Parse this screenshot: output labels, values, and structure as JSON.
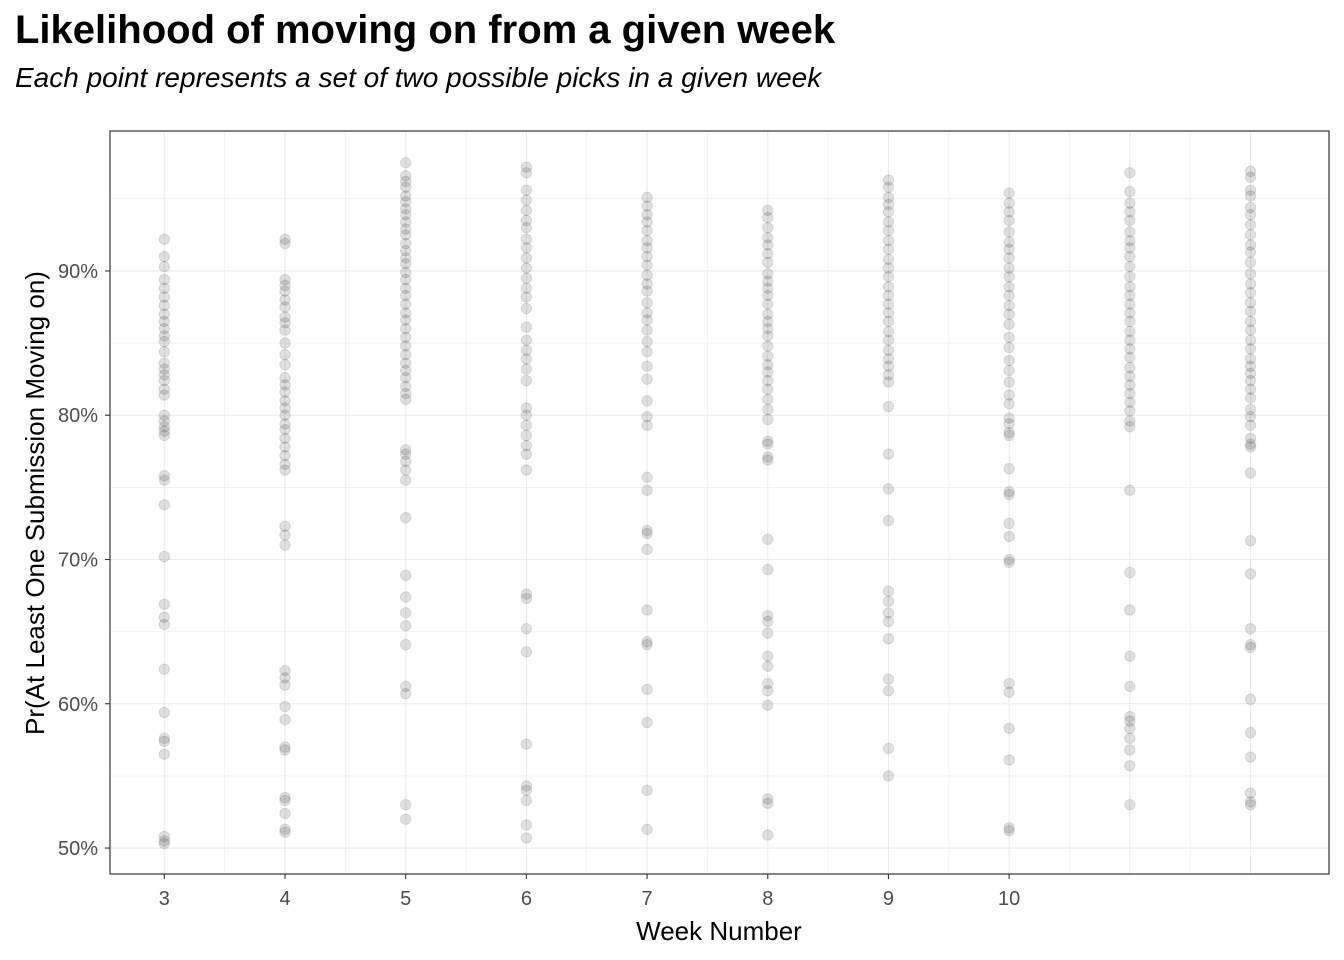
{
  "chart_data": {
    "type": "scatter",
    "title": "Likelihood of moving on from a given week",
    "subtitle": "Each point represents a set of two possible picks in a given week",
    "xlabel": "Week Number",
    "ylabel": "Pr(At Least One Submission Moving on)",
    "x_ticks": [
      "3",
      "4",
      "5",
      "6",
      "7",
      "8",
      "9",
      "10"
    ],
    "y_ticks": [
      "50%",
      "60%",
      "70%",
      "80%",
      "90%"
    ],
    "xlim": [
      2.55,
      12.65
    ],
    "ylim": [
      48.2,
      99.7
    ],
    "grid": true,
    "point_color": "#000000",
    "point_alpha": 0.12,
    "series": [
      {
        "x": 3,
        "values": [
          92.2,
          91.0,
          90.3,
          89.4,
          88.8,
          88.2,
          87.6,
          87.0,
          86.5,
          86.0,
          85.5,
          85.1,
          84.4,
          83.6,
          83.2,
          82.8,
          82.4,
          81.8,
          81.4,
          80.0,
          79.6,
          79.2,
          78.9,
          78.6,
          75.8,
          75.5,
          73.8,
          70.2,
          66.9,
          66.0,
          65.5,
          62.4,
          59.4,
          57.6,
          57.4,
          56.5,
          50.8,
          50.5,
          50.3
        ]
      },
      {
        "x": 4,
        "values": [
          92.2,
          91.9,
          89.4,
          89.0,
          88.6,
          88.0,
          87.5,
          86.8,
          86.4,
          85.9,
          85.0,
          84.2,
          83.5,
          82.6,
          82.1,
          81.6,
          81.0,
          80.5,
          80.0,
          79.4,
          79.0,
          78.4,
          77.8,
          77.2,
          76.6,
          76.2,
          72.3,
          71.7,
          71.0,
          62.3,
          61.8,
          61.3,
          59.8,
          58.9,
          57.0,
          56.8,
          53.5,
          53.3,
          52.4,
          51.3,
          51.1
        ]
      },
      {
        "x": 5,
        "values": [
          97.5,
          96.6,
          96.2,
          95.8,
          95.2,
          94.8,
          94.3,
          93.9,
          93.4,
          92.9,
          92.5,
          91.9,
          91.4,
          90.9,
          90.5,
          89.9,
          89.4,
          88.8,
          88.3,
          87.7,
          87.1,
          86.6,
          86.0,
          85.4,
          84.8,
          84.2,
          83.6,
          83.1,
          82.6,
          82.0,
          81.5,
          81.1,
          77.6,
          77.3,
          76.8,
          76.2,
          75.5,
          72.9,
          68.9,
          67.4,
          66.3,
          65.4,
          64.1,
          61.2,
          60.7,
          53.0,
          52.0
        ]
      },
      {
        "x": 6,
        "values": [
          97.2,
          96.8,
          95.6,
          94.9,
          94.2,
          93.5,
          93.0,
          92.2,
          91.6,
          90.9,
          90.2,
          89.5,
          88.8,
          88.2,
          87.4,
          86.1,
          85.2,
          84.5,
          83.9,
          83.2,
          82.4,
          80.5,
          80.0,
          79.3,
          78.6,
          77.9,
          77.3,
          76.2,
          67.6,
          67.3,
          65.2,
          63.6,
          57.2,
          54.3,
          54.0,
          53.3,
          51.6,
          50.7
        ]
      },
      {
        "x": 7,
        "values": [
          95.1,
          94.5,
          93.9,
          93.4,
          92.8,
          92.1,
          91.6,
          91.0,
          90.4,
          89.7,
          89.1,
          88.6,
          87.8,
          87.1,
          86.6,
          85.9,
          85.1,
          84.4,
          83.4,
          82.5,
          81.0,
          79.9,
          79.3,
          75.7,
          74.8,
          72.0,
          71.8,
          70.7,
          66.5,
          64.3,
          64.1,
          61.0,
          58.7,
          54.0,
          51.3
        ]
      },
      {
        "x": 8,
        "values": [
          94.2,
          93.7,
          93.0,
          92.3,
          91.8,
          91.2,
          90.6,
          89.8,
          89.3,
          88.8,
          88.3,
          87.7,
          87.0,
          86.5,
          86.0,
          85.5,
          84.8,
          84.1,
          83.5,
          83.0,
          82.4,
          81.8,
          81.1,
          80.4,
          79.7,
          78.2,
          78.0,
          77.1,
          76.9,
          71.4,
          69.3,
          66.1,
          65.7,
          64.9,
          63.3,
          62.6,
          61.4,
          60.9,
          59.9,
          53.4,
          53.1,
          50.9
        ]
      },
      {
        "x": 9,
        "values": [
          96.3,
          95.8,
          95.1,
          94.6,
          94.1,
          93.4,
          92.8,
          92.1,
          91.5,
          90.8,
          90.2,
          89.6,
          88.9,
          88.3,
          87.7,
          87.1,
          86.5,
          85.8,
          85.2,
          84.5,
          83.9,
          83.4,
          82.8,
          82.3,
          80.6,
          77.3,
          74.9,
          72.7,
          67.8,
          67.1,
          66.3,
          65.7,
          64.5,
          61.7,
          60.9,
          56.9,
          55.0
        ]
      },
      {
        "x": 10,
        "values": [
          95.4,
          94.7,
          94.1,
          93.5,
          92.7,
          92.0,
          91.5,
          90.9,
          90.2,
          89.6,
          88.9,
          88.3,
          87.6,
          87.0,
          86.3,
          85.4,
          84.7,
          83.8,
          83.1,
          82.3,
          81.4,
          80.8,
          79.8,
          79.4,
          78.8,
          78.6,
          76.3,
          74.7,
          74.5,
          72.5,
          71.6,
          70.0,
          69.8,
          61.4,
          60.8,
          58.3,
          56.1,
          51.4,
          51.2
        ]
      },
      {
        "x": 11,
        "values": [
          96.8,
          95.5,
          94.7,
          94.1,
          93.5,
          92.7,
          92.1,
          91.6,
          91.0,
          90.3,
          89.6,
          88.9,
          88.3,
          87.7,
          87.1,
          86.5,
          85.8,
          85.2,
          84.6,
          84.0,
          83.3,
          82.7,
          82.1,
          81.5,
          80.9,
          80.3,
          79.6,
          79.2,
          74.8,
          69.1,
          66.5,
          63.3,
          61.2,
          59.1,
          58.8,
          58.3,
          57.6,
          56.8,
          55.7,
          53.0
        ]
      },
      {
        "x": 12,
        "values": [
          96.9,
          96.5,
          95.6,
          95.2,
          94.4,
          93.9,
          93.2,
          92.5,
          91.8,
          91.3,
          90.6,
          89.8,
          89.1,
          88.5,
          87.8,
          87.2,
          86.5,
          85.9,
          85.2,
          84.6,
          83.9,
          83.4,
          82.9,
          82.4,
          81.8,
          81.2,
          80.4,
          79.9,
          79.3,
          78.4,
          78.0,
          77.8,
          76.0,
          71.3,
          69.0,
          65.2,
          64.1,
          63.9,
          60.3,
          58.0,
          56.3,
          53.8,
          53.2,
          53.0
        ]
      }
    ]
  }
}
